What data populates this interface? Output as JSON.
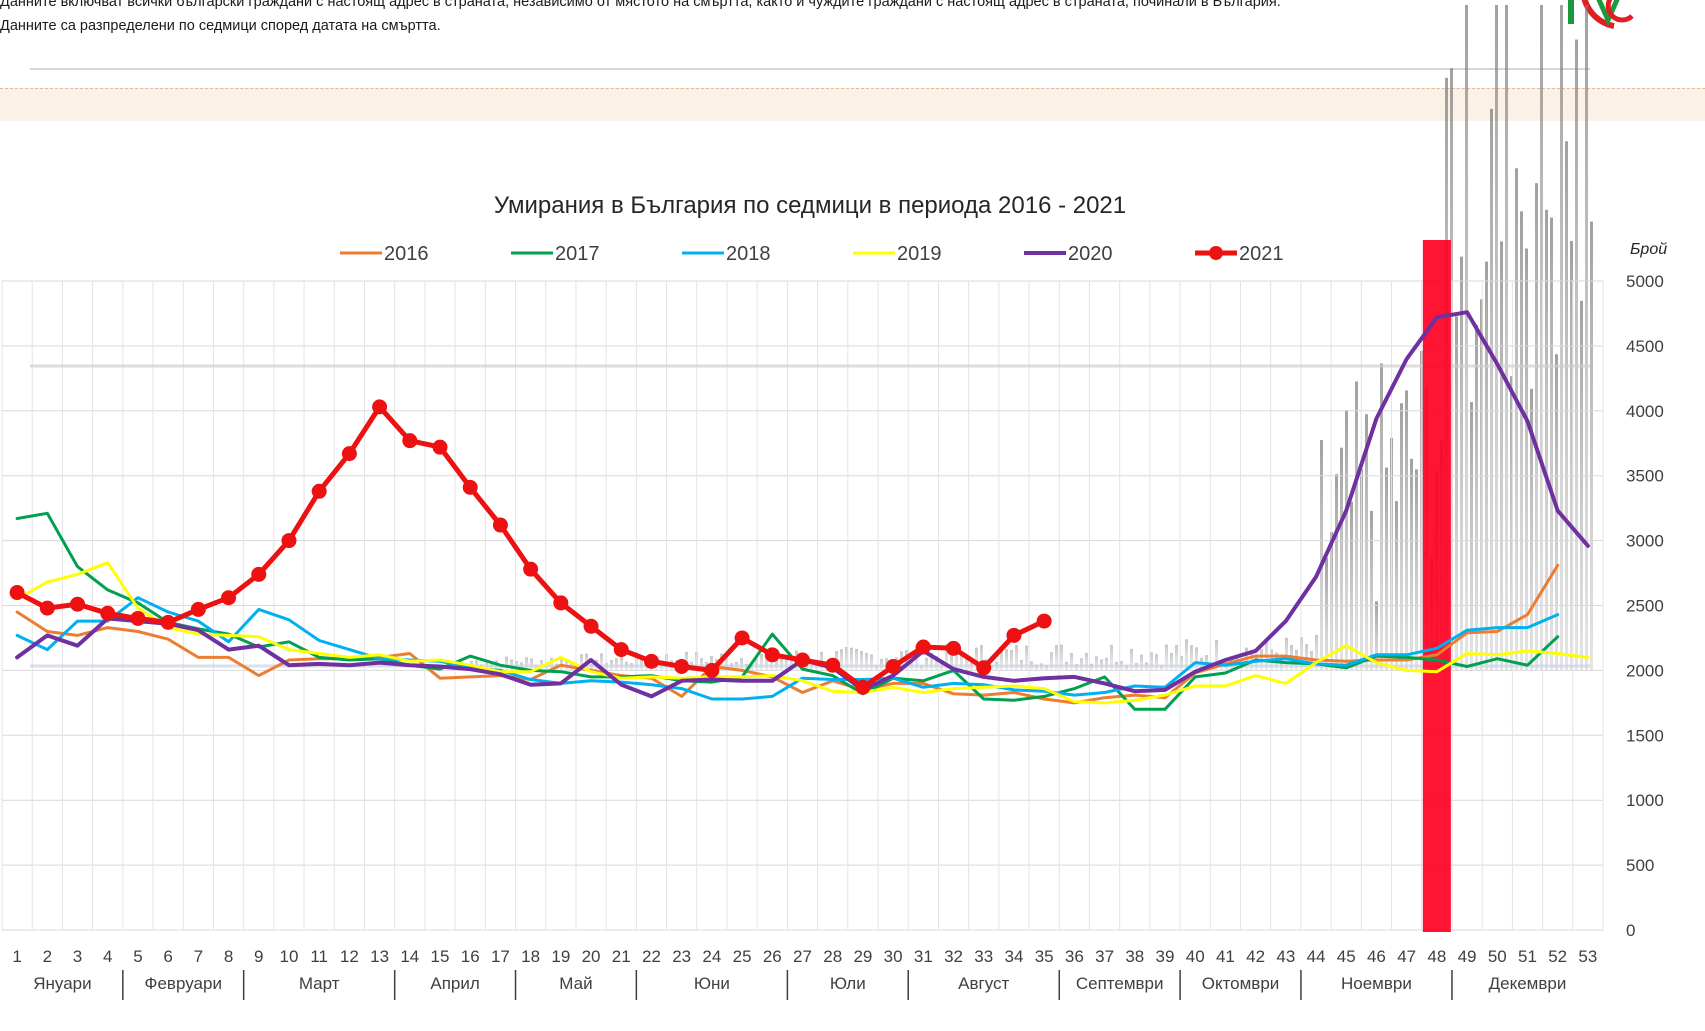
{
  "header": {
    "line1": "Данните включват всички български граждани с настоящ адрес в страната, независимо от мястото на смъртта, както и чуждите граждани с настоящ адрес в страната, починали в България.",
    "line2": "Данните са разпределени по седмици според датата на смъртта."
  },
  "logo": {
    "icon": "nsi-logo-icon",
    "colors": [
      "#ffffff",
      "#1a9a3c",
      "#e02020"
    ]
  },
  "chart_data": {
    "type": "line",
    "title": "Умирания в България по седмици в периода 2016 - 2021",
    "ylabel": "Брой",
    "xlabel": "",
    "ylim": [
      0,
      5000
    ],
    "yticks": [
      0,
      500,
      1000,
      1500,
      2000,
      2500,
      3000,
      3500,
      4000,
      4500,
      5000
    ],
    "x": [
      1,
      2,
      3,
      4,
      5,
      6,
      7,
      8,
      9,
      10,
      11,
      12,
      13,
      14,
      15,
      16,
      17,
      18,
      19,
      20,
      21,
      22,
      23,
      24,
      25,
      26,
      27,
      28,
      29,
      30,
      31,
      32,
      33,
      34,
      35,
      36,
      37,
      38,
      39,
      40,
      41,
      42,
      43,
      44,
      45,
      46,
      47,
      48,
      49,
      50,
      51,
      52,
      53
    ],
    "months": [
      {
        "name": "Януари",
        "from": 1,
        "to": 4
      },
      {
        "name": "Февруари",
        "from": 5,
        "to": 8
      },
      {
        "name": "Март",
        "from": 9,
        "to": 13
      },
      {
        "name": "Април",
        "from": 14,
        "to": 17
      },
      {
        "name": "Май",
        "from": 18,
        "to": 21
      },
      {
        "name": "Юни",
        "from": 22,
        "to": 26
      },
      {
        "name": "Юли",
        "from": 27,
        "to": 30
      },
      {
        "name": "Август",
        "from": 31,
        "to": 35
      },
      {
        "name": "Септември",
        "from": 36,
        "to": 39
      },
      {
        "name": "Октомври",
        "from": 40,
        "to": 43
      },
      {
        "name": "Ноември",
        "from": 44,
        "to": 48
      },
      {
        "name": "Декември",
        "from": 49,
        "to": 53
      }
    ],
    "highlight_week": 48,
    "highlight_color": "#ff0022",
    "grid": true,
    "legend_position": "top",
    "series": [
      {
        "name": "2016",
        "color": "#ed7d31",
        "width": 3,
        "markers": false,
        "values": [
          2450,
          2300,
          2270,
          2330,
          2300,
          2240,
          2100,
          2100,
          1960,
          2080,
          2090,
          2090,
          2100,
          2130,
          1940,
          1950,
          1960,
          1930,
          2040,
          2000,
          1960,
          1940,
          1800,
          2030,
          2000,
          1950,
          1830,
          1920,
          1850,
          1900,
          1900,
          1820,
          1810,
          1830,
          1780,
          1750,
          1790,
          1810,
          1790,
          1980,
          2050,
          2110,
          2110,
          2080,
          2070,
          2080,
          2080,
          2120,
          2290,
          2300,
          2430,
          2810,
          null
        ]
      },
      {
        "name": "2017",
        "color": "#00a050",
        "width": 3,
        "markers": false,
        "values": [
          3170,
          3210,
          2800,
          2620,
          2520,
          2370,
          2320,
          2280,
          2180,
          2220,
          2100,
          2080,
          2090,
          2040,
          2010,
          2110,
          2040,
          2000,
          1990,
          1950,
          1950,
          1960,
          1920,
          1910,
          1950,
          2280,
          2010,
          1960,
          1820,
          1940,
          1920,
          2000,
          1780,
          1770,
          1800,
          1860,
          1950,
          1700,
          1700,
          1950,
          1980,
          2080,
          2060,
          2050,
          2020,
          2110,
          2100,
          2080,
          2030,
          2090,
          2040,
          2260,
          null
        ]
      },
      {
        "name": "2018",
        "color": "#00b0f0",
        "width": 3,
        "markers": false,
        "values": [
          2270,
          2160,
          2380,
          2380,
          2560,
          2450,
          2380,
          2220,
          2470,
          2390,
          2230,
          2160,
          2090,
          2080,
          2070,
          2020,
          2000,
          1930,
          1900,
          1920,
          1910,
          1890,
          1860,
          1780,
          1780,
          1800,
          1940,
          1930,
          1930,
          1940,
          1870,
          1900,
          1890,
          1850,
          1840,
          1810,
          1830,
          1880,
          1870,
          2060,
          2040,
          2070,
          2090,
          2050,
          2040,
          2120,
          2120,
          2170,
          2310,
          2330,
          2330,
          2430,
          null
        ]
      },
      {
        "name": "2019",
        "color": "#ffff00",
        "width": 3,
        "markers": false,
        "values": [
          2550,
          2680,
          2740,
          2830,
          2480,
          2330,
          2280,
          2270,
          2260,
          2160,
          2130,
          2100,
          2120,
          2070,
          2080,
          2040,
          1990,
          1990,
          2100,
          1990,
          1940,
          1950,
          1940,
          1950,
          1950,
          1960,
          1920,
          1840,
          1830,
          1870,
          1830,
          1860,
          1870,
          1880,
          1860,
          1760,
          1750,
          1770,
          1810,
          1880,
          1880,
          1960,
          1900,
          2060,
          2190,
          2060,
          2000,
          1990,
          2130,
          2120,
          2150,
          2130,
          2100
        ]
      },
      {
        "name": "2020",
        "color": "#7030a0",
        "width": 4,
        "markers": false,
        "values": [
          2100,
          2270,
          2190,
          2400,
          2380,
          2360,
          2310,
          2160,
          2190,
          2040,
          2050,
          2040,
          2060,
          2040,
          2030,
          2010,
          1970,
          1890,
          1900,
          2080,
          1890,
          1800,
          1920,
          1930,
          1920,
          1920,
          2080,
          2020,
          1850,
          1960,
          2150,
          2010,
          1950,
          1920,
          1940,
          1950,
          1900,
          1840,
          1850,
          1990,
          2080,
          2150,
          2380,
          2720,
          3230,
          3940,
          4400,
          4720,
          4760,
          4360,
          3920,
          3230,
          2960
        ]
      },
      {
        "name": "2021",
        "color": "#ee1111",
        "width": 5,
        "markers": true,
        "values": [
          2600,
          2480,
          2510,
          2440,
          2400,
          2370,
          2470,
          2560,
          2740,
          3000,
          3380,
          3670,
          4030,
          3770,
          3720,
          3410,
          3120,
          2780,
          2520,
          2340,
          2160,
          2070,
          2030,
          2000,
          2250,
          2120,
          2080,
          2040,
          1870,
          2030,
          2180,
          2170,
          2020,
          2270,
          2380,
          null,
          null,
          null,
          null,
          null,
          null,
          null,
          null,
          null,
          null,
          null,
          null,
          null,
          null,
          null,
          null,
          null,
          null
        ]
      }
    ]
  }
}
